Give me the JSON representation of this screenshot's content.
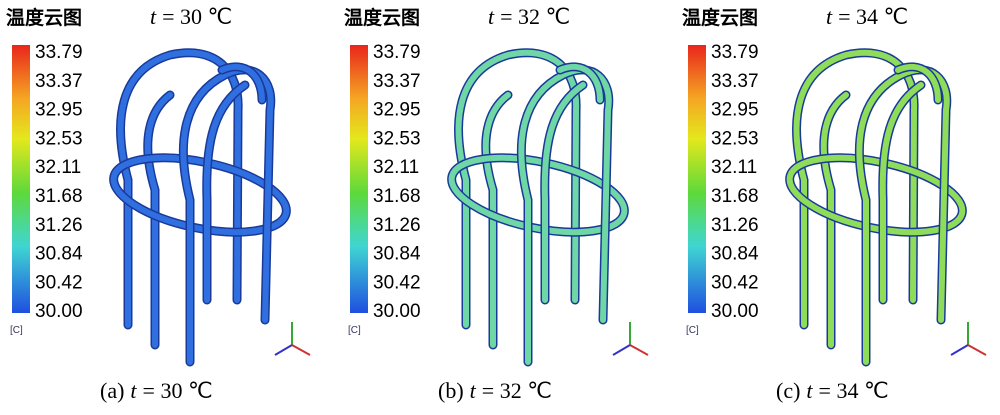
{
  "panels": [
    {
      "title": "温度云图",
      "condition": {
        "var": "t",
        "rest": "= 30 ℃"
      },
      "colorbar": {
        "labels": [
          "33.79",
          "33.37",
          "32.95",
          "32.53",
          "32.11",
          "31.68",
          "31.26",
          "30.84",
          "30.42",
          "30.00"
        ],
        "unit": "[C]"
      },
      "caption": {
        "letter": "(a)",
        "var": "t",
        "rest": "= 30 ℃"
      },
      "color": "#2f6fe0"
    },
    {
      "title": "温度云图",
      "condition": {
        "var": "t",
        "rest": "= 32 ℃"
      },
      "colorbar": {
        "labels": [
          "33.79",
          "33.37",
          "32.95",
          "32.53",
          "32.11",
          "31.68",
          "31.26",
          "30.84",
          "30.42",
          "30.00"
        ],
        "unit": "[C]"
      },
      "caption": {
        "letter": "(b)",
        "var": "t",
        "rest": "= 32 ℃"
      },
      "color": "#6fd6a6"
    },
    {
      "title": "温度云图",
      "condition": {
        "var": "t",
        "rest": "= 34 ℃"
      },
      "colorbar": {
        "labels": [
          "33.79",
          "33.37",
          "32.95",
          "32.53",
          "32.11",
          "31.68",
          "31.26",
          "30.84",
          "30.42",
          "30.00"
        ],
        "unit": "[C]"
      },
      "caption": {
        "letter": "(c)",
        "var": "t",
        "rest": "= 34 ℃"
      },
      "color": "#8fdc5a"
    }
  ]
}
